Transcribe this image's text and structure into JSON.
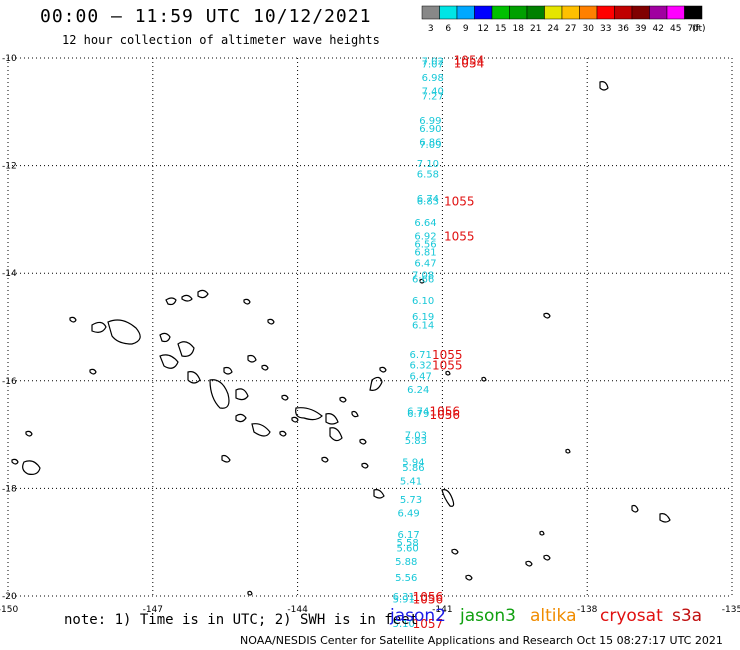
{
  "title": "00:00 – 11:59 UTC 10/12/2021",
  "subtitle": "12 hour collection of altimeter wave heights",
  "note": "note: 1) Time is in UTC; 2) SWH is in feet",
  "credit": "NOAA/NESDIS Center for Satellite Applications and Research   Oct 15 08:27:17 UTC 2021",
  "satellites": [
    {
      "name": "jason2",
      "color": "#1a1ae6"
    },
    {
      "name": "jason3",
      "color": "#10a010"
    },
    {
      "name": "altika",
      "color": "#f08c00"
    },
    {
      "name": "cryosat",
      "color": "#e01010"
    },
    {
      "name": "s3a",
      "color": "#c01010"
    }
  ],
  "legend": {
    "unit": "(ft)",
    "colors": [
      "#888888",
      "#00e5e5",
      "#00a8ff",
      "#0000ff",
      "#00c000",
      "#00a000",
      "#008000",
      "#e5e500",
      "#ffc000",
      "#ff8000",
      "#ff0000",
      "#c00000",
      "#800000",
      "#a000a0",
      "#ff00ff",
      "#000000"
    ],
    "labels": [
      "3",
      "6",
      "9",
      "12",
      "15",
      "18",
      "21",
      "24",
      "27",
      "30",
      "33",
      "36",
      "39",
      "42",
      "45",
      "70"
    ]
  },
  "axes": {
    "lon_labels": [
      "-150",
      "-147",
      "-144",
      "-141",
      "-138",
      "-135"
    ],
    "lon_values": [
      -150,
      -147,
      -144,
      -141,
      -138,
      -135
    ],
    "lat_labels": [
      "-10",
      "-12",
      "-14",
      "-16",
      "-18",
      "-20"
    ],
    "lat_values": [
      -10,
      -12,
      -14,
      -16,
      -18,
      -20
    ],
    "lon_range": [
      -150,
      -135
    ],
    "lat_range": [
      -20,
      -10
    ]
  },
  "wave_obs": [
    {
      "lon": -141.2,
      "lat": -10.05,
      "swh": "7.02",
      "color": "#18c8d8"
    },
    {
      "lon": -141.2,
      "lat": -10.1,
      "swh": "7.07",
      "color": "#18c8d8"
    },
    {
      "lon": -141.2,
      "lat": -10.35,
      "swh": "6.98",
      "color": "#18c8d8"
    },
    {
      "lon": -141.2,
      "lat": -10.6,
      "swh": "7.40",
      "color": "#18c8d8"
    },
    {
      "lon": -141.2,
      "lat": -10.7,
      "swh": "7.27",
      "color": "#18c8d8"
    },
    {
      "lon": -141.25,
      "lat": -11.15,
      "swh": "6.99",
      "color": "#18c8d8"
    },
    {
      "lon": -141.25,
      "lat": -11.3,
      "swh": "6.90",
      "color": "#18c8d8"
    },
    {
      "lon": -141.25,
      "lat": -11.55,
      "swh": "6.86",
      "color": "#18c8d8"
    },
    {
      "lon": -141.25,
      "lat": -11.6,
      "swh": "7.09",
      "color": "#18c8d8"
    },
    {
      "lon": -141.3,
      "lat": -11.95,
      "swh": "7.10",
      "color": "#18c8d8"
    },
    {
      "lon": -141.3,
      "lat": -12.15,
      "swh": "6.58",
      "color": "#18c8d8"
    },
    {
      "lon": -141.3,
      "lat": -12.6,
      "swh": "6.74",
      "color": "#18c8d8"
    },
    {
      "lon": -141.3,
      "lat": -12.65,
      "swh": "6.83",
      "color": "#18c8d8"
    },
    {
      "lon": -141.35,
      "lat": -13.05,
      "swh": "6.64",
      "color": "#18c8d8"
    },
    {
      "lon": -141.35,
      "lat": -13.3,
      "swh": "6.92",
      "color": "#18c8d8"
    },
    {
      "lon": -141.35,
      "lat": -13.45,
      "swh": "6.56",
      "color": "#18c8d8"
    },
    {
      "lon": -141.35,
      "lat": -13.6,
      "swh": "6.81",
      "color": "#18c8d8"
    },
    {
      "lon": -141.35,
      "lat": -13.8,
      "swh": "6.47",
      "color": "#18c8d8"
    },
    {
      "lon": -141.4,
      "lat": -14.02,
      "swh": "7.08",
      "color": "#18c8d8"
    },
    {
      "lon": -141.4,
      "lat": -14.1,
      "swh": "6.66",
      "color": "#18c8d8"
    },
    {
      "lon": -141.4,
      "lat": -14.5,
      "swh": "6.10",
      "color": "#18c8d8"
    },
    {
      "lon": -141.4,
      "lat": -14.8,
      "swh": "6.19",
      "color": "#18c8d8"
    },
    {
      "lon": -141.4,
      "lat": -14.95,
      "swh": "6.14",
      "color": "#18c8d8"
    },
    {
      "lon": -141.45,
      "lat": -15.5,
      "swh": "6.71",
      "color": "#18c8d8"
    },
    {
      "lon": -141.45,
      "lat": -15.7,
      "swh": "6.32",
      "color": "#18c8d8"
    },
    {
      "lon": -141.45,
      "lat": -15.9,
      "swh": "6.47",
      "color": "#18c8d8"
    },
    {
      "lon": -141.5,
      "lat": -16.15,
      "swh": "6.24",
      "color": "#18c8d8"
    },
    {
      "lon": -141.5,
      "lat": -16.55,
      "swh": "6.74",
      "color": "#18c8d8"
    },
    {
      "lon": -141.5,
      "lat": -16.6,
      "swh": "6.79",
      "color": "#18c8d8"
    },
    {
      "lon": -141.55,
      "lat": -17.0,
      "swh": "7.03",
      "color": "#18c8d8"
    },
    {
      "lon": -141.55,
      "lat": -17.1,
      "swh": "5.83",
      "color": "#18c8d8"
    },
    {
      "lon": -141.6,
      "lat": -17.5,
      "swh": "5.94",
      "color": "#18c8d8"
    },
    {
      "lon": -141.6,
      "lat": -17.6,
      "swh": "5.86",
      "color": "#18c8d8"
    },
    {
      "lon": -141.65,
      "lat": -17.85,
      "swh": "5.41",
      "color": "#18c8d8"
    },
    {
      "lon": -141.65,
      "lat": -18.2,
      "swh": "5.73",
      "color": "#18c8d8"
    },
    {
      "lon": -141.7,
      "lat": -18.45,
      "swh": "6.49",
      "color": "#18c8d8"
    },
    {
      "lon": -141.7,
      "lat": -18.85,
      "swh": "6.17",
      "color": "#18c8d8"
    },
    {
      "lon": -141.72,
      "lat": -19.0,
      "swh": "5.58",
      "color": "#18c8d8"
    },
    {
      "lon": -141.72,
      "lat": -19.1,
      "swh": "5.60",
      "color": "#18c8d8"
    },
    {
      "lon": -141.75,
      "lat": -19.35,
      "swh": "5.88",
      "color": "#18c8d8"
    },
    {
      "lon": -141.75,
      "lat": -19.65,
      "swh": "5.56",
      "color": "#18c8d8"
    },
    {
      "lon": -141.8,
      "lat": -20.0,
      "swh": "6.31",
      "color": "#18c8d8"
    },
    {
      "lon": -141.8,
      "lat": -20.05,
      "swh": "5.91",
      "color": "#18c8d8"
    },
    {
      "lon": -141.8,
      "lat": -20.5,
      "swh": "5.10",
      "color": "#18c8d8"
    }
  ],
  "time_labels": [
    {
      "lon": -140.45,
      "lat": -10.03,
      "text": "1054"
    },
    {
      "lon": -140.45,
      "lat": -10.08,
      "text": "1054"
    },
    {
      "lon": -140.65,
      "lat": -12.65,
      "text": "1055"
    },
    {
      "lon": -140.65,
      "lat": -13.3,
      "text": "1055"
    },
    {
      "lon": -140.9,
      "lat": -15.5,
      "text": "1055"
    },
    {
      "lon": -140.9,
      "lat": -15.7,
      "text": "1055"
    },
    {
      "lon": -140.95,
      "lat": -16.55,
      "text": "1056"
    },
    {
      "lon": -140.95,
      "lat": -16.62,
      "text": "1056"
    },
    {
      "lon": -141.3,
      "lat": -20.0,
      "text": "1056"
    },
    {
      "lon": -141.3,
      "lat": -20.05,
      "text": "1056"
    },
    {
      "lon": -141.3,
      "lat": -20.5,
      "text": "1057"
    }
  ]
}
